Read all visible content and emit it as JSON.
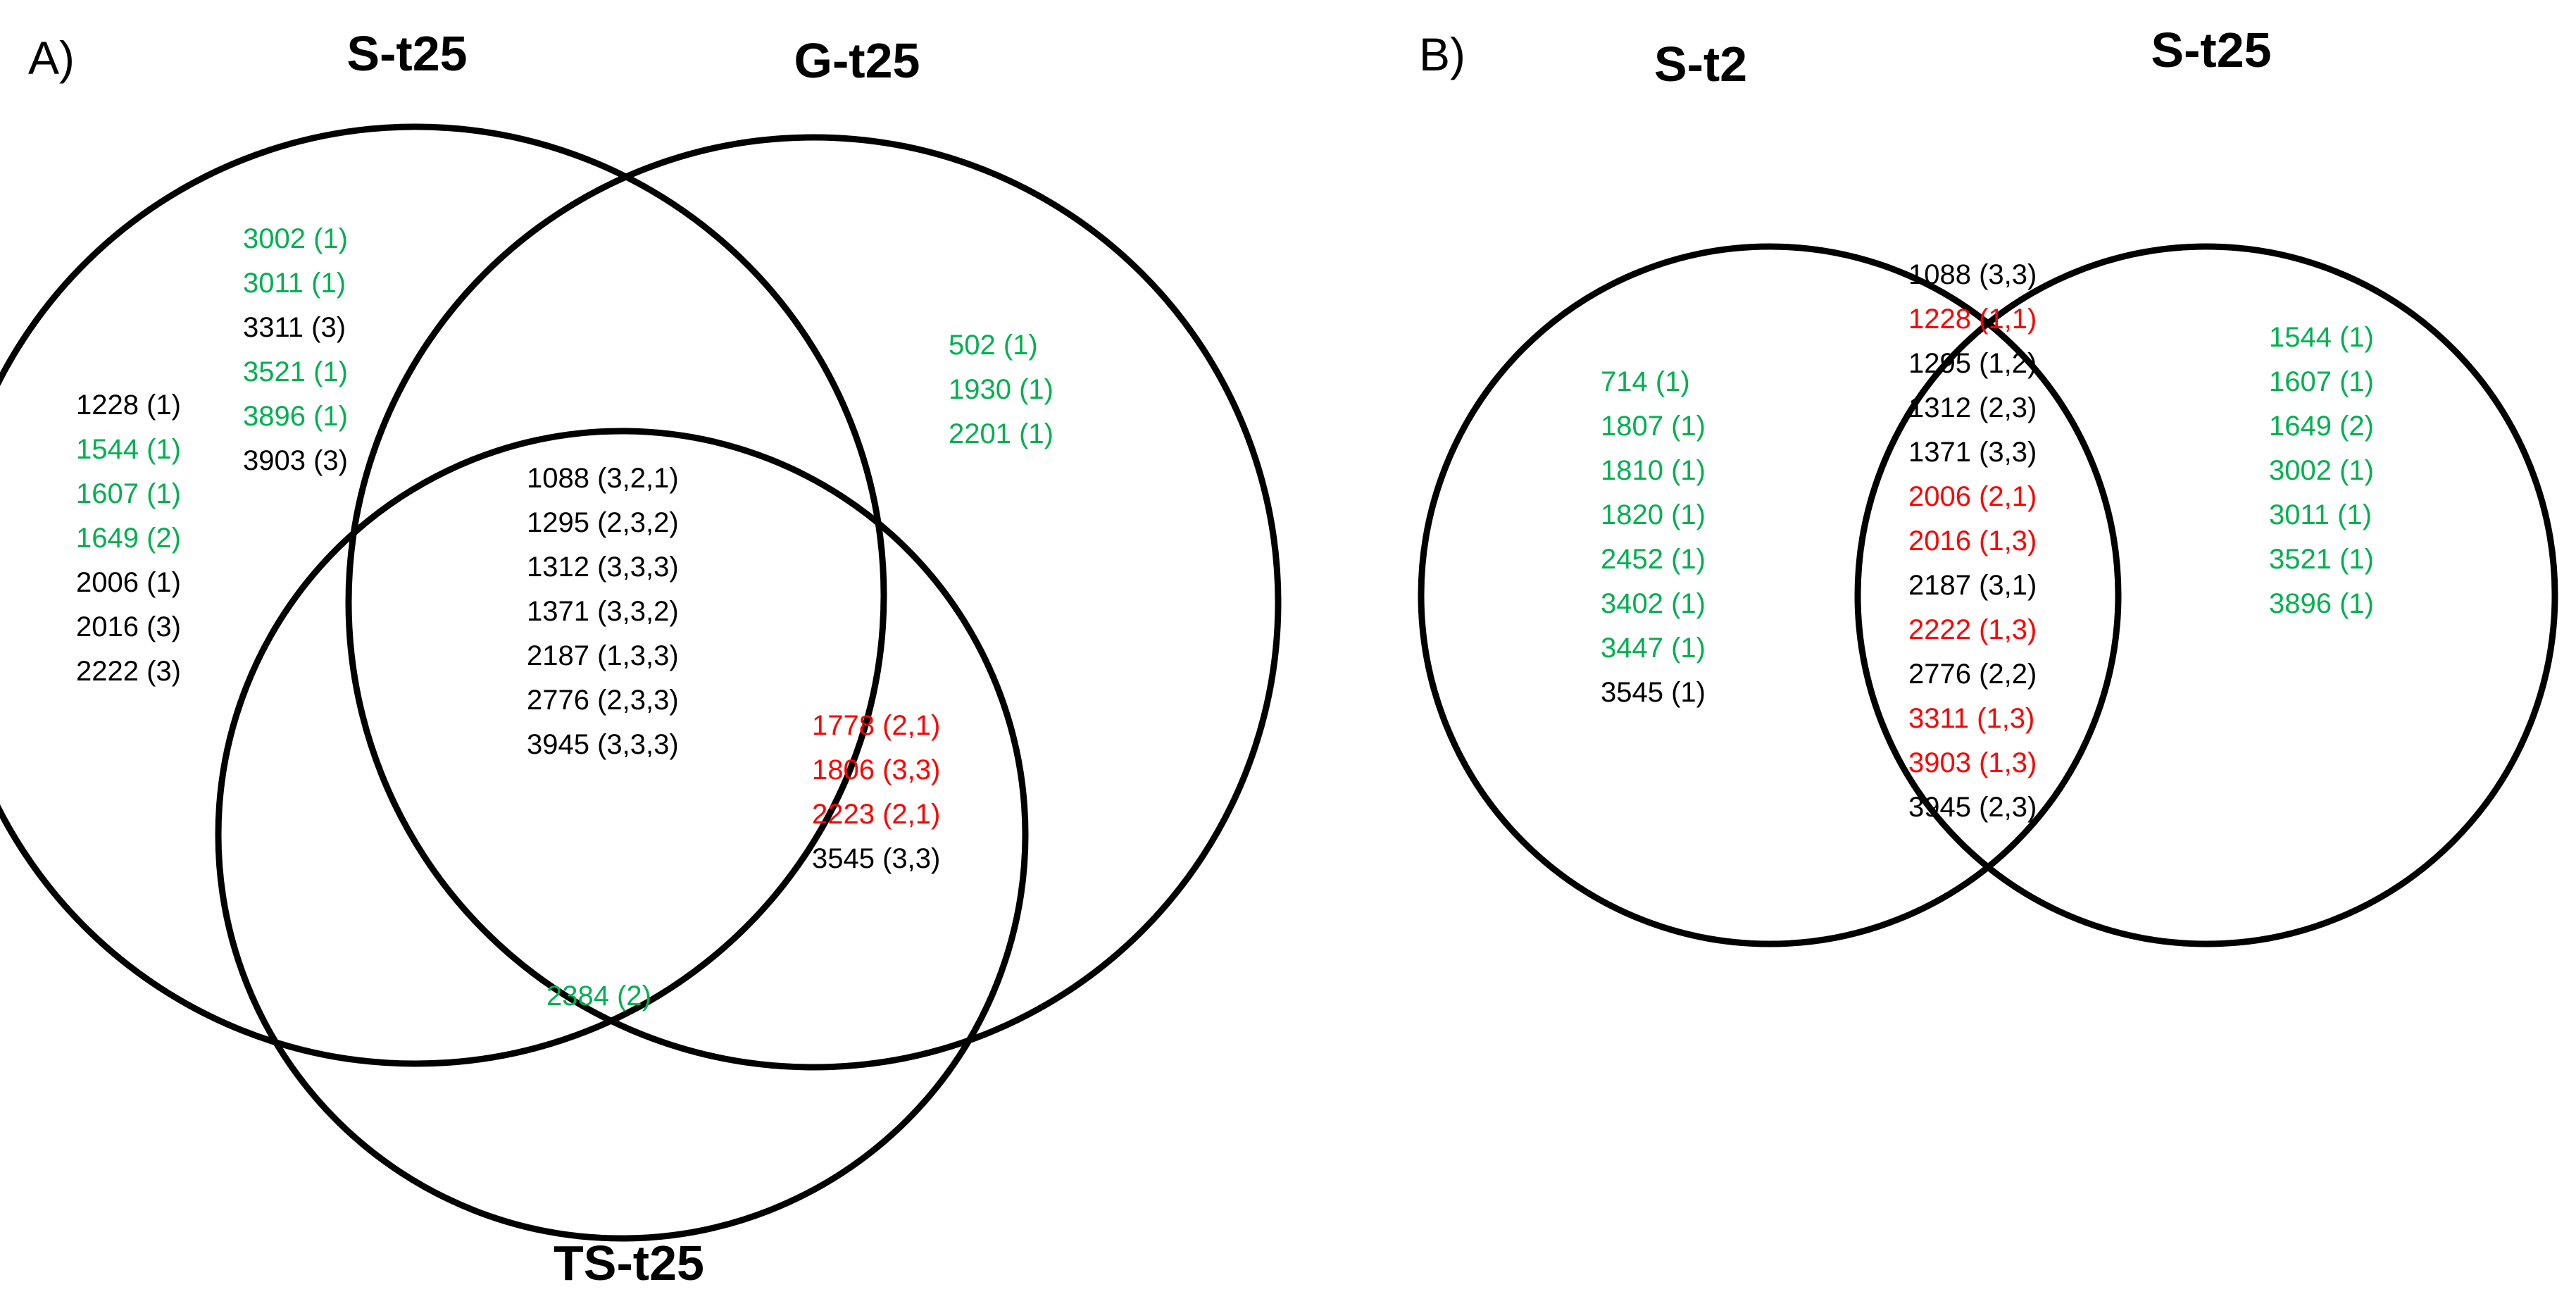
{
  "colors": {
    "neutral": "#000000",
    "green": "#00B050",
    "red": "#FF0000",
    "outline": "#000000"
  },
  "panel_a": {
    "label": "A)",
    "sets": {
      "s_t25": "S-t25",
      "g_t25": "G-t25",
      "ts_t25": "TS-t25"
    },
    "regions": {
      "s_only_top": [
        {
          "text": "3002 (1)",
          "color": "green"
        },
        {
          "text": "3011 (1)",
          "color": "green"
        },
        {
          "text": "3311 (3)",
          "color": "neutral"
        },
        {
          "text": "3521 (1)",
          "color": "green"
        },
        {
          "text": "3896 (1)",
          "color": "green"
        },
        {
          "text": "3903 (3)",
          "color": "neutral"
        }
      ],
      "s_only_left": [
        {
          "text": "1228 (1)",
          "color": "neutral"
        },
        {
          "text": "1544 (1)",
          "color": "green"
        },
        {
          "text": "1607 (1)",
          "color": "green"
        },
        {
          "text": "1649 (2)",
          "color": "green"
        },
        {
          "text": "2006 (1)",
          "color": "neutral"
        },
        {
          "text": "2016 (3)",
          "color": "neutral"
        },
        {
          "text": "2222 (3)",
          "color": "neutral"
        }
      ],
      "g_only": [
        {
          "text": "502 (1)",
          "color": "green"
        },
        {
          "text": "1930 (1)",
          "color": "green"
        },
        {
          "text": "2201 (1)",
          "color": "green"
        }
      ],
      "center_all": [
        {
          "text": "1088 (3,2,1)",
          "color": "neutral"
        },
        {
          "text": "1295 (2,3,2)",
          "color": "neutral"
        },
        {
          "text": "1312 (3,3,3)",
          "color": "neutral"
        },
        {
          "text": "1371 (3,3,2)",
          "color": "neutral"
        },
        {
          "text": "2187 (1,3,3)",
          "color": "neutral"
        },
        {
          "text": "2776 (2,3,3)",
          "color": "neutral"
        },
        {
          "text": "3945 (3,3,3)",
          "color": "neutral"
        }
      ],
      "g_ts": [
        {
          "text": "1778 (2,1)",
          "color": "red"
        },
        {
          "text": "1806 (3,3)",
          "color": "red"
        },
        {
          "text": "2223 (2,1)",
          "color": "red"
        },
        {
          "text": "3545 (3,3)",
          "color": "neutral"
        }
      ],
      "ts_only": [
        {
          "text": "2384 (2)",
          "color": "green"
        }
      ]
    }
  },
  "panel_b": {
    "label": "B)",
    "sets": {
      "s_t2": "S-t2",
      "s_t25": "S-t25"
    },
    "regions": {
      "s_t2_only": [
        {
          "text": "714 (1)",
          "color": "green"
        },
        {
          "text": "1807 (1)",
          "color": "green"
        },
        {
          "text": "1810 (1)",
          "color": "green"
        },
        {
          "text": "1820 (1)",
          "color": "green"
        },
        {
          "text": "2452 (1)",
          "color": "green"
        },
        {
          "text": "3402 (1)",
          "color": "green"
        },
        {
          "text": "3447 (1)",
          "color": "green"
        },
        {
          "text": "3545 (1)",
          "color": "neutral"
        }
      ],
      "overlap": [
        {
          "text": "1088 (3,3)",
          "color": "neutral"
        },
        {
          "text": "1228 (1,1)",
          "color": "red"
        },
        {
          "text": "1295 (1,2)",
          "color": "neutral"
        },
        {
          "text": "1312 (2,3)",
          "color": "neutral"
        },
        {
          "text": "1371 (3,3)",
          "color": "neutral"
        },
        {
          "text": "2006 (2,1)",
          "color": "red"
        },
        {
          "text": "2016 (1,3)",
          "color": "red"
        },
        {
          "text": "2187 (3,1)",
          "color": "neutral"
        },
        {
          "text": "2222 (1,3)",
          "color": "red"
        },
        {
          "text": "2776 (2,2)",
          "color": "neutral"
        },
        {
          "text": "3311 (1,3)",
          "color": "red"
        },
        {
          "text": "3903 (1,3)",
          "color": "red"
        },
        {
          "text": "3945 (2,3)",
          "color": "neutral"
        }
      ],
      "s_t25_only": [
        {
          "text": "1544 (1)",
          "color": "green"
        },
        {
          "text": "1607 (1)",
          "color": "green"
        },
        {
          "text": "1649 (2)",
          "color": "green"
        },
        {
          "text": "3002 (1)",
          "color": "green"
        },
        {
          "text": "3011 (1)",
          "color": "green"
        },
        {
          "text": "3521 (1)",
          "color": "green"
        },
        {
          "text": "3896 (1)",
          "color": "green"
        }
      ]
    }
  }
}
